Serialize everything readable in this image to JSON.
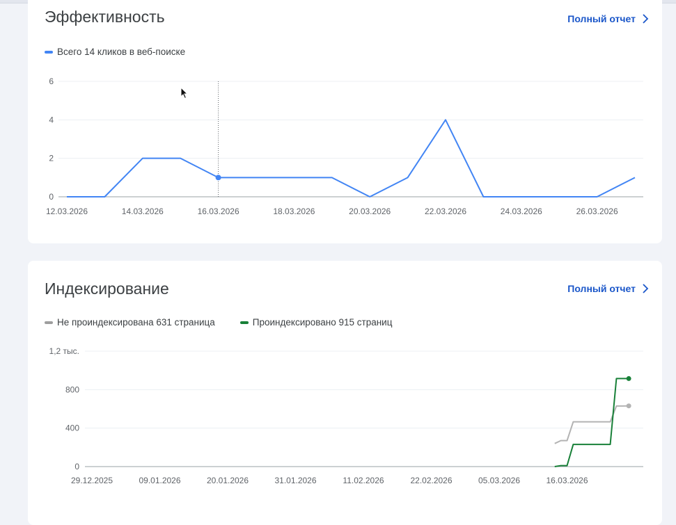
{
  "colors": {
    "clicks": "#4285f4",
    "not_indexed": "#b3b3b3",
    "indexed": "#188038",
    "link": "#1a56c9"
  },
  "performance": {
    "title": "Эффективность",
    "full_report": "Полный отчет",
    "legend": "Всего 14 кликов в веб-поиске"
  },
  "indexing": {
    "title": "Индексирование",
    "full_report": "Полный отчет",
    "legend_not_indexed": "Не проиндексирована 631 страница",
    "legend_indexed": "Проиндексировано 915 страниц"
  },
  "chart_data": [
    {
      "type": "line",
      "x": [
        "12.03.2026",
        "13.03.2026",
        "14.03.2026",
        "15.03.2026",
        "16.03.2026",
        "17.03.2026",
        "18.03.2026",
        "19.03.2026",
        "20.03.2026",
        "21.03.2026",
        "22.03.2026",
        "23.03.2026",
        "24.03.2026",
        "25.03.2026",
        "26.03.2026",
        "27.03.2026"
      ],
      "x_tick_labels": [
        "12.03.2026",
        "14.03.2026",
        "16.03.2026",
        "18.03.2026",
        "20.03.2026",
        "22.03.2026",
        "24.03.2026",
        "26.03.2026"
      ],
      "series": [
        {
          "name": "Всего 14 кликов в веб-поиске",
          "values": [
            0,
            0,
            2,
            2,
            1,
            1,
            1,
            1,
            0,
            1,
            4,
            0,
            0,
            0,
            0,
            1
          ]
        }
      ],
      "y_ticks": [
        "0",
        "2",
        "4",
        "6"
      ],
      "ylim": [
        0,
        6
      ],
      "grid": true,
      "hover_index": 4
    },
    {
      "type": "line",
      "x_tick_labels": [
        "29.12.2025",
        "09.01.2026",
        "20.01.2026",
        "31.01.2026",
        "11.02.2026",
        "22.02.2026",
        "05.03.2026",
        "16.03.2026"
      ],
      "x_range": [
        "29.12.2025",
        "27.03.2026"
      ],
      "y_ticks": [
        "0",
        "400",
        "800",
        "1,2 тыс."
      ],
      "ylim": [
        0,
        1200
      ],
      "grid": true,
      "series": [
        {
          "name": "Не проиндексирована 631 страница",
          "points": [
            [
              "14.03.2026",
              240
            ],
            [
              "15.03.2026",
              270
            ],
            [
              "16.03.2026",
              270
            ],
            [
              "17.03.2026",
              465
            ],
            [
              "18.03.2026",
              465
            ],
            [
              "19.03.2026",
              465
            ],
            [
              "20.03.2026",
              465
            ],
            [
              "21.03.2026",
              465
            ],
            [
              "22.03.2026",
              465
            ],
            [
              "23.03.2026",
              465
            ],
            [
              "24.03.2026",
              630
            ],
            [
              "25.03.2026",
              630
            ],
            [
              "26.03.2026",
              631
            ]
          ]
        },
        {
          "name": "Проиндексировано 915 страниц",
          "points": [
            [
              "14.03.2026",
              0
            ],
            [
              "15.03.2026",
              10
            ],
            [
              "16.03.2026",
              10
            ],
            [
              "17.03.2026",
              230
            ],
            [
              "18.03.2026",
              230
            ],
            [
              "19.03.2026",
              230
            ],
            [
              "20.03.2026",
              230
            ],
            [
              "21.03.2026",
              230
            ],
            [
              "22.03.2026",
              230
            ],
            [
              "23.03.2026",
              230
            ],
            [
              "24.03.2026",
              915
            ],
            [
              "25.03.2026",
              915
            ],
            [
              "26.03.2026",
              915
            ]
          ]
        }
      ]
    }
  ]
}
